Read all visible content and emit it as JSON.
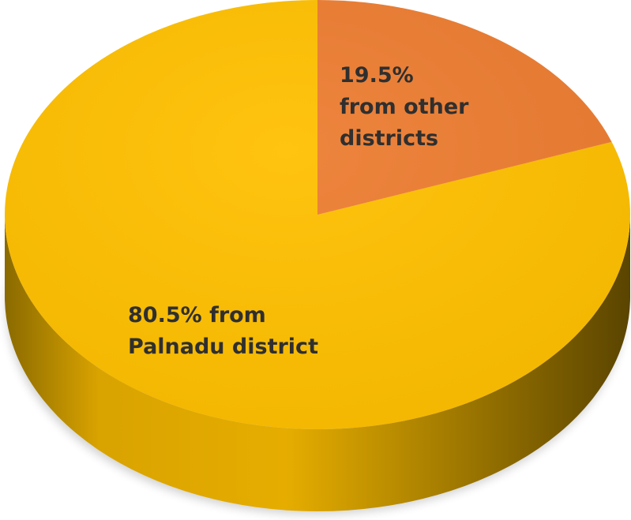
{
  "chart_data": {
    "type": "pie",
    "style": "3d",
    "slices": [
      {
        "value": 80.5,
        "color": "#FFC000",
        "label_lines": [
          "80.5% from",
          "Palnadu district"
        ]
      },
      {
        "value": 19.5,
        "color": "#ED7D31",
        "label_lines": [
          "19.5%",
          "from other",
          "districts"
        ]
      }
    ]
  }
}
